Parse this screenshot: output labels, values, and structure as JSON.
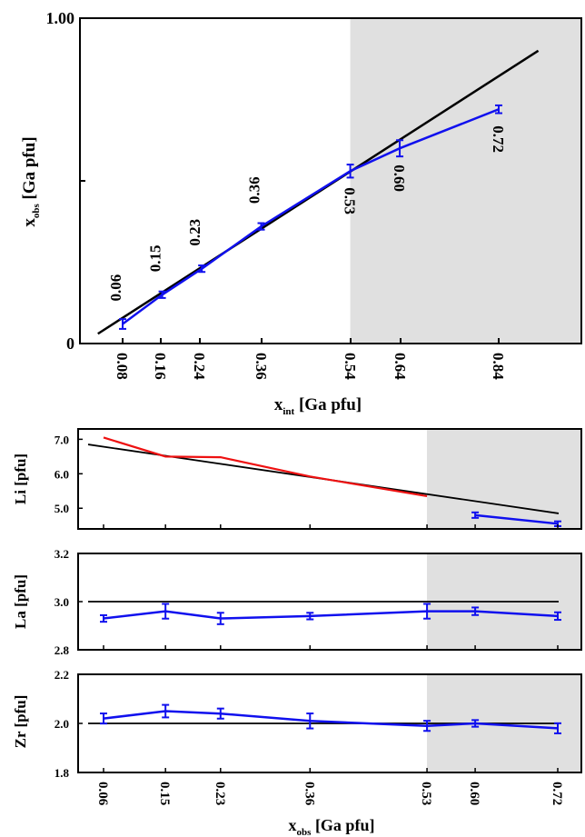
{
  "figure": {
    "colors": {
      "observed": "#1010ee",
      "ideal": "#000000",
      "li_calc": "#ee1111",
      "shade": "#e0e0e0"
    }
  },
  "chart_data": [
    {
      "type": "line",
      "panel": "top",
      "xlabel_main": "x",
      "xlabel_sub": "int",
      "xlabel_rest": " [Ga pfu]",
      "ylabel_main": "x",
      "ylabel_sub": "obs",
      "ylabel_rest": " [Ga pfu]",
      "xlim": [
        0,
        1.0
      ],
      "ylim": [
        0,
        1.0
      ],
      "y_ticks": [
        {
          "value": 1.0,
          "label": "1.00"
        },
        {
          "value": 0.5,
          "label": ""
        },
        {
          "value": 0,
          "label": "0"
        }
      ],
      "x_tick_labels": [
        "0.08",
        "0.16",
        "0.24",
        "0.36",
        "0.54",
        "0.64",
        "0.84"
      ],
      "shaded_from_x": 0.54,
      "series": [
        {
          "style": "ideal",
          "x": [
            0.03,
            0.92
          ],
          "y": [
            0.03,
            0.9
          ]
        },
        {
          "style": "observed",
          "x": [
            0.08,
            0.16,
            0.24,
            0.36,
            0.54,
            0.64,
            0.84
          ],
          "y": [
            0.06,
            0.15,
            0.23,
            0.36,
            0.53,
            0.6,
            0.72
          ],
          "err": [
            0.015,
            0.01,
            0.01,
            0.01,
            0.02,
            0.025,
            0.012
          ],
          "point_labels": [
            "0.06",
            "0.15",
            "0.23",
            "0.36",
            "0.53",
            "0.60",
            "0.72"
          ]
        }
      ]
    },
    {
      "type": "line",
      "panel": "li",
      "ylabel": "Li [pfu]",
      "ylim": [
        4.4,
        7.3
      ],
      "y_ticks": [
        {
          "value": 7.0,
          "label": "7.0"
        },
        {
          "value": 6.0,
          "label": "6.0"
        },
        {
          "value": 5.0,
          "label": "5.0"
        }
      ],
      "series": [
        {
          "style": "ideal",
          "x": [
            0.0,
            0.75
          ],
          "y": [
            6.85,
            4.85
          ]
        },
        {
          "style": "li_calc",
          "x": [
            0.06,
            0.15,
            0.23,
            0.36,
            0.53
          ],
          "y": [
            7.05,
            6.5,
            6.48,
            5.92,
            5.35
          ]
        },
        {
          "style": "observed",
          "x": [
            0.6,
            0.72
          ],
          "y": [
            4.8,
            4.55
          ],
          "err": [
            0.04,
            0.03
          ]
        }
      ]
    },
    {
      "type": "line",
      "panel": "la",
      "ylabel": "La [pfu]",
      "ylim": [
        2.8,
        3.2
      ],
      "y_ticks": [
        {
          "value": 3.2,
          "label": "3.2"
        },
        {
          "value": 3.0,
          "label": "3.0"
        },
        {
          "value": 2.8,
          "label": "2.8"
        }
      ],
      "series": [
        {
          "style": "ideal",
          "x": [
            0.0,
            0.75
          ],
          "y": [
            3.0,
            3.0
          ]
        },
        {
          "style": "observed",
          "x": [
            0.06,
            0.15,
            0.23,
            0.36,
            0.53,
            0.6,
            0.72
          ],
          "y": [
            2.93,
            2.96,
            2.93,
            2.94,
            2.96,
            2.96,
            2.94
          ],
          "err": [
            0.008,
            0.025,
            0.018,
            0.008,
            0.025,
            0.01,
            0.01
          ]
        }
      ]
    },
    {
      "type": "line",
      "panel": "zr",
      "ylabel": "Zr [pfu]",
      "ylim": [
        1.8,
        2.2
      ],
      "y_ticks": [
        {
          "value": 2.2,
          "label": "2.2"
        },
        {
          "value": 2.0,
          "label": "2.0"
        },
        {
          "value": 1.8,
          "label": "1.8"
        }
      ],
      "x_tick_labels": [
        "0.06",
        "0.15",
        "0.23",
        "0.36",
        "0.53",
        "0.60",
        "0.72"
      ],
      "xlabel_main": "x",
      "xlabel_sub": "obs",
      "xlabel_rest": " [Ga pfu]",
      "series": [
        {
          "style": "ideal",
          "x": [
            0.0,
            0.75
          ],
          "y": [
            2.0,
            2.0
          ]
        },
        {
          "style": "observed",
          "x": [
            0.06,
            0.15,
            0.23,
            0.36,
            0.53,
            0.6,
            0.72
          ],
          "y": [
            2.02,
            2.05,
            2.04,
            2.01,
            1.99,
            2.0,
            1.98
          ],
          "err": [
            0.015,
            0.02,
            0.015,
            0.025,
            0.015,
            0.008,
            0.015
          ]
        }
      ]
    }
  ]
}
